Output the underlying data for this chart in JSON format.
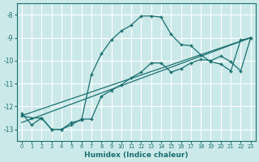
{
  "xlabel": "Humidex (Indice chaleur)",
  "xlim": [
    -0.5,
    23.5
  ],
  "ylim": [
    -13.5,
    -7.5
  ],
  "yticks": [
    -13,
    -12,
    -11,
    -10,
    -9,
    -8
  ],
  "xticks": [
    0,
    1,
    2,
    3,
    4,
    5,
    6,
    7,
    8,
    9,
    10,
    11,
    12,
    13,
    14,
    15,
    16,
    17,
    18,
    19,
    20,
    21,
    22,
    23
  ],
  "bg_color": "#cce9e9",
  "grid_color": "#aad4d4",
  "line_color": "#1a7070",
  "line1_x": [
    0,
    1,
    2,
    3,
    4,
    5,
    6,
    7,
    8,
    9,
    10,
    11,
    12,
    13,
    14,
    15,
    16,
    17,
    18,
    19,
    20,
    21,
    22,
    23
  ],
  "line1_y": [
    -12.3,
    -12.8,
    -12.5,
    -13.0,
    -13.0,
    -12.7,
    -12.6,
    -10.6,
    -9.7,
    -9.1,
    -8.7,
    -8.45,
    -8.05,
    -8.05,
    -8.1,
    -8.85,
    -9.3,
    -9.35,
    -9.75,
    -10.05,
    -10.15,
    -10.45,
    -9.1,
    -9.0
  ],
  "line2_x": [
    0,
    1,
    2,
    3,
    4,
    5,
    6,
    7,
    8,
    9,
    10,
    11,
    12,
    13,
    14,
    15,
    16,
    17,
    18,
    19,
    20,
    21,
    22,
    23
  ],
  "line2_y": [
    -12.4,
    -12.5,
    -12.5,
    -13.0,
    -13.0,
    -12.8,
    -12.55,
    -12.55,
    -11.55,
    -11.3,
    -11.05,
    -10.75,
    -10.5,
    -10.1,
    -10.1,
    -10.5,
    -10.35,
    -10.1,
    -9.95,
    -10.0,
    -9.8,
    -10.05,
    -10.45,
    -9.0
  ],
  "line3_x": [
    0,
    23
  ],
  "line3_y": [
    -12.4,
    -9.0
  ],
  "line4_x": [
    0,
    23
  ],
  "line4_y": [
    -12.7,
    -9.0
  ]
}
